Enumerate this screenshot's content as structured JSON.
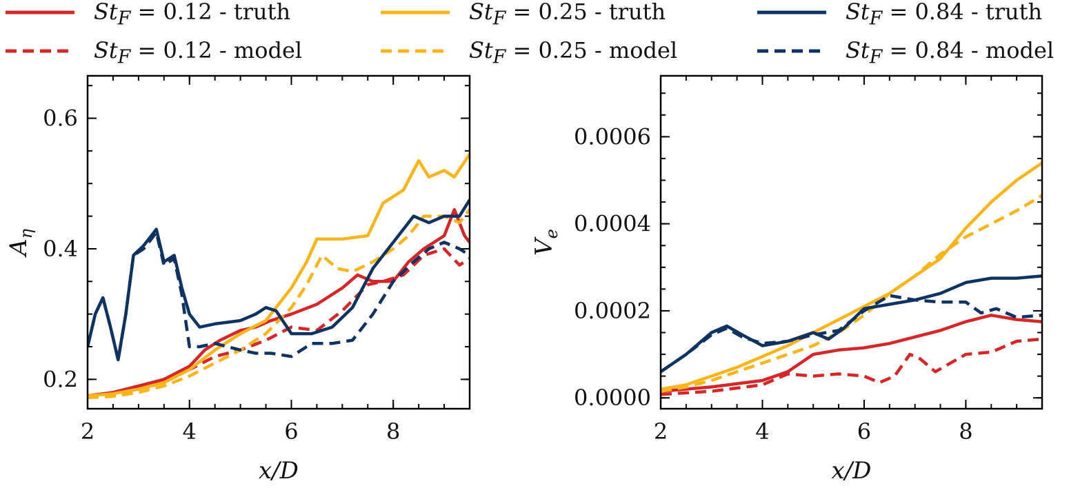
{
  "legend": {
    "entries": [
      {
        "prefix": "St",
        "sub": "F",
        "text": " = 0.12 - truth",
        "color": "#d62728",
        "dashed": false
      },
      {
        "prefix": "St",
        "sub": "F",
        "text": " = 0.12 - model",
        "color": "#d62728",
        "dashed": true
      },
      {
        "prefix": "St",
        "sub": "F",
        "text": " = 0.25 - truth",
        "color": "#fbb41a",
        "dashed": false
      },
      {
        "prefix": "St",
        "sub": "F",
        "text": " = 0.25 - model",
        "color": "#fbb41a",
        "dashed": true
      },
      {
        "prefix": "St",
        "sub": "F",
        "text": " = 0.84 - truth",
        "color": "#0e3362",
        "dashed": false
      },
      {
        "prefix": "St",
        "sub": "F",
        "text": " = 0.84 - model",
        "color": "#0e3362",
        "dashed": true
      }
    ]
  },
  "chart_data": [
    {
      "type": "line",
      "xlabel": "x/D",
      "ylabel": "A_η",
      "ylabel_main": "A",
      "ylabel_sub": "η",
      "xlim": [
        2,
        9.5
      ],
      "ylim": [
        0.155,
        0.665
      ],
      "xticks": [
        2,
        4,
        6,
        8
      ],
      "xtick_labels": [
        "2",
        "4",
        "6",
        "8"
      ],
      "yticks": [
        0.2,
        0.4,
        0.6
      ],
      "ytick_labels": [
        "0.2",
        "0.4",
        "0.6"
      ],
      "x_minor_step": 0.5,
      "y_minor_step": 0.05,
      "series": [
        {
          "name": "St_F = 0.12 - truth",
          "color": "#d62728",
          "dashed": false,
          "x": [
            2,
            2.5,
            3,
            3.5,
            4,
            4.3,
            4.6,
            5,
            5.3,
            5.6,
            6,
            6.5,
            7,
            7.3,
            7.6,
            8,
            8.3,
            8.6,
            9,
            9.2,
            9.4,
            9.5
          ],
          "y": [
            0.175,
            0.18,
            0.19,
            0.2,
            0.22,
            0.245,
            0.26,
            0.275,
            0.28,
            0.29,
            0.3,
            0.315,
            0.34,
            0.36,
            0.35,
            0.35,
            0.38,
            0.4,
            0.42,
            0.46,
            0.42,
            0.41
          ]
        },
        {
          "name": "St_F = 0.12 - model",
          "color": "#d62728",
          "dashed": true,
          "x": [
            2,
            2.5,
            3,
            3.5,
            4,
            4.5,
            5,
            5.5,
            6,
            6.5,
            7,
            7.5,
            7.8,
            8.2,
            8.6,
            9,
            9.3,
            9.5
          ],
          "y": [
            0.175,
            0.177,
            0.185,
            0.2,
            0.215,
            0.235,
            0.245,
            0.26,
            0.28,
            0.275,
            0.305,
            0.345,
            0.35,
            0.36,
            0.39,
            0.4,
            0.375,
            0.385
          ]
        },
        {
          "name": "St_F = 0.25 - truth",
          "color": "#fbb41a",
          "dashed": false,
          "x": [
            2,
            2.5,
            3,
            3.5,
            4,
            4.5,
            5,
            5.5,
            6,
            6.3,
            6.5,
            7,
            7.5,
            7.8,
            8.2,
            8.5,
            8.7,
            9,
            9.2,
            9.5
          ],
          "y": [
            0.175,
            0.178,
            0.185,
            0.195,
            0.215,
            0.245,
            0.27,
            0.29,
            0.34,
            0.38,
            0.415,
            0.415,
            0.42,
            0.47,
            0.49,
            0.535,
            0.51,
            0.52,
            0.51,
            0.545
          ]
        },
        {
          "name": "St_F = 0.25 - model",
          "color": "#fbb41a",
          "dashed": true,
          "x": [
            2,
            2.5,
            3,
            3.5,
            4,
            4.5,
            5,
            5.5,
            6,
            6.3,
            6.6,
            6.9,
            7.2,
            7.6,
            8,
            8.3,
            8.6,
            9,
            9.3,
            9.5
          ],
          "y": [
            0.172,
            0.174,
            0.18,
            0.19,
            0.205,
            0.225,
            0.245,
            0.27,
            0.31,
            0.345,
            0.39,
            0.37,
            0.365,
            0.38,
            0.4,
            0.42,
            0.45,
            0.45,
            0.44,
            0.46
          ]
        },
        {
          "name": "St_F = 0.84 - truth",
          "color": "#0e3362",
          "dashed": false,
          "x": [
            2,
            2.15,
            2.3,
            2.45,
            2.6,
            2.75,
            2.9,
            3.1,
            3.35,
            3.5,
            3.7,
            3.85,
            4,
            4.2,
            4.5,
            5,
            5.3,
            5.5,
            5.7,
            6,
            6.4,
            6.8,
            7.2,
            7.6,
            8,
            8.4,
            8.7,
            9,
            9.3,
            9.5
          ],
          "y": [
            0.25,
            0.3,
            0.325,
            0.28,
            0.23,
            0.3,
            0.39,
            0.405,
            0.43,
            0.38,
            0.39,
            0.34,
            0.3,
            0.28,
            0.285,
            0.29,
            0.3,
            0.31,
            0.305,
            0.27,
            0.27,
            0.28,
            0.31,
            0.37,
            0.41,
            0.45,
            0.44,
            0.45,
            0.45,
            0.475
          ]
        },
        {
          "name": "St_F = 0.84 - model",
          "color": "#0e3362",
          "dashed": true,
          "x": [
            2,
            2.15,
            2.3,
            2.45,
            2.6,
            2.75,
            2.9,
            3.1,
            3.35,
            3.5,
            3.7,
            3.85,
            4,
            4.2,
            4.5,
            5,
            5.3,
            5.6,
            6,
            6.4,
            6.8,
            7.2,
            7.6,
            8,
            8.4,
            8.7,
            9,
            9.3,
            9.5
          ],
          "y": [
            0.25,
            0.3,
            0.325,
            0.28,
            0.23,
            0.3,
            0.39,
            0.4,
            0.425,
            0.375,
            0.385,
            0.33,
            0.25,
            0.25,
            0.255,
            0.245,
            0.24,
            0.24,
            0.235,
            0.255,
            0.255,
            0.26,
            0.3,
            0.35,
            0.38,
            0.4,
            0.41,
            0.4,
            0.39
          ]
        }
      ]
    },
    {
      "type": "line",
      "xlabel": "x/D",
      "ylabel": "V_e",
      "ylabel_main": "V",
      "ylabel_sub": "e",
      "xlim": [
        2,
        9.5
      ],
      "ylim": [
        -2.5e-05,
        0.00074
      ],
      "xticks": [
        2,
        4,
        6,
        8
      ],
      "xtick_labels": [
        "2",
        "4",
        "6",
        "8"
      ],
      "yticks": [
        0,
        0.0002,
        0.0004,
        0.0006
      ],
      "ytick_labels": [
        "0.0000",
        "0.0002",
        "0.0004",
        "0.0006"
      ],
      "x_minor_step": 0.5,
      "y_minor_step": 5e-05,
      "series": [
        {
          "name": "St_F = 0.12 - truth",
          "color": "#d62728",
          "dashed": false,
          "x": [
            2,
            3,
            4,
            4.5,
            5,
            5.5,
            6,
            6.5,
            7,
            7.5,
            8,
            8.5,
            9,
            9.5
          ],
          "y": [
            1.5e-05,
            2.5e-05,
            4e-05,
            6e-05,
            0.0001,
            0.00011,
            0.000115,
            0.000125,
            0.00014,
            0.000155,
            0.000175,
            0.00019,
            0.00018,
            0.000175
          ]
        },
        {
          "name": "St_F = 0.12 - model",
          "color": "#d62728",
          "dashed": true,
          "x": [
            2,
            3,
            4,
            4.5,
            5,
            5.5,
            6,
            6.3,
            6.6,
            6.9,
            7.1,
            7.4,
            7.7,
            8,
            8.5,
            9,
            9.5
          ],
          "y": [
            8e-06,
            1.5e-05,
            3e-05,
            5.5e-05,
            5e-05,
            5.5e-05,
            5e-05,
            3.5e-05,
            5e-05,
            0.0001,
            9e-05,
            6e-05,
            8e-05,
            0.0001,
            0.000105,
            0.00013,
            0.000135
          ]
        },
        {
          "name": "St_F = 0.25 - truth",
          "color": "#fbb41a",
          "dashed": false,
          "x": [
            2,
            2.5,
            3,
            3.5,
            4,
            4.5,
            5,
            5.5,
            6,
            6.5,
            7,
            7.5,
            8,
            8.5,
            9,
            9.5
          ],
          "y": [
            2e-05,
            3e-05,
            5e-05,
            7e-05,
            9.5e-05,
            0.00012,
            0.00015,
            0.00018,
            0.00021,
            0.00024,
            0.00028,
            0.00032,
            0.00039,
            0.00045,
            0.0005,
            0.00054
          ]
        },
        {
          "name": "St_F = 0.25 - model",
          "color": "#fbb41a",
          "dashed": true,
          "x": [
            2,
            2.5,
            3,
            3.5,
            4,
            4.5,
            5,
            5.5,
            6,
            6.5,
            7,
            7.5,
            8,
            8.5,
            9,
            9.5
          ],
          "y": [
            1.5e-05,
            2.5e-05,
            4e-05,
            6e-05,
            8e-05,
            0.0001,
            0.00012,
            0.00015,
            0.00019,
            0.00024,
            0.00028,
            0.00033,
            0.00037,
            0.0004,
            0.00043,
            0.000465
          ]
        },
        {
          "name": "St_F = 0.84 - truth",
          "color": "#0e3362",
          "dashed": false,
          "x": [
            2,
            2.5,
            3,
            3.3,
            3.6,
            4,
            4.5,
            5,
            5.3,
            5.6,
            6,
            6.5,
            7,
            7.5,
            8,
            8.5,
            9,
            9.5
          ],
          "y": [
            6e-05,
            0.0001,
            0.00015,
            0.000165,
            0.000145,
            0.00012,
            0.00013,
            0.00015,
            0.000135,
            0.00016,
            0.000205,
            0.000215,
            0.000225,
            0.00024,
            0.000265,
            0.000275,
            0.000275,
            0.00028
          ]
        },
        {
          "name": "St_F = 0.84 - model",
          "color": "#0e3362",
          "dashed": true,
          "x": [
            2,
            2.5,
            3,
            3.3,
            3.6,
            4,
            4.5,
            5,
            5.5,
            6,
            6.5,
            7,
            7.5,
            8,
            8.3,
            8.6,
            9,
            9.5
          ],
          "y": [
            6e-05,
            0.0001,
            0.000145,
            0.00016,
            0.00014,
            0.000125,
            0.00013,
            0.000145,
            0.000155,
            0.0002,
            0.000235,
            0.000225,
            0.00022,
            0.00022,
            0.000195,
            0.000205,
            0.000185,
            0.00019
          ]
        }
      ]
    }
  ]
}
